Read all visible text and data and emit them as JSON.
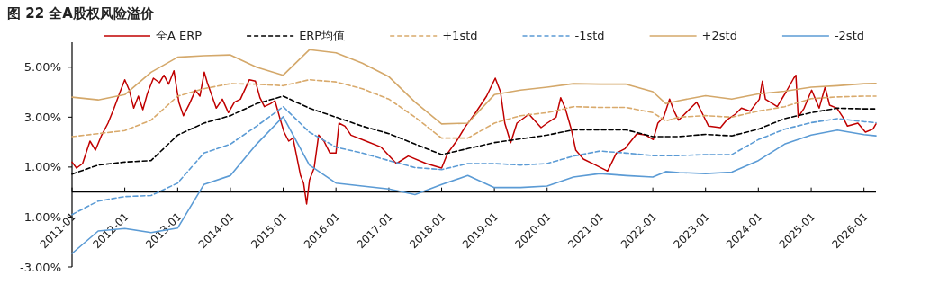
{
  "chart_data": {
    "type": "line",
    "title": "图 22 全A股权风险溢价",
    "legend": "top",
    "xlim": [
      "2011-01",
      "2026-03-25"
    ],
    "xticks": [
      "2011-01",
      "2012-01",
      "2013-01",
      "2014-01",
      "2015-01",
      "2016-01",
      "2017-01",
      "2018-01",
      "2019-01",
      "2020-01",
      "2021-01",
      "2022-01",
      "2023-01",
      "2024-01",
      "2025-01",
      "2026-01"
    ],
    "ylim": [
      -3,
      6
    ],
    "yticks": [
      {
        "value": -3,
        "label": "-3.00%"
      },
      {
        "value": -1,
        "label": "-1.00%"
      },
      {
        "value": 1,
        "label": "1.00%"
      },
      {
        "value": 3,
        "label": "3.00%"
      },
      {
        "value": 5,
        "label": "5.00%"
      }
    ],
    "series": [
      {
        "name": "全A ERP",
        "color": "#c00000",
        "line_style": "solid",
        "x": [
          "2011-01-01",
          "2011-02-01",
          "2011-03-15",
          "2011-05-05",
          "2011-06-12",
          "2011-07-25",
          "2011-09-07",
          "2011-10-19",
          "2011-11-30",
          "2012-01-01",
          "2012-02-01",
          "2012-03-03",
          "2012-04-04",
          "2012-05-05",
          "2012-06-06",
          "2012-07-17",
          "2012-08-28",
          "2012-09-28",
          "2012-10-30",
          "2012-12-06",
          "2013-01-09",
          "2013-02-10",
          "2013-03-24",
          "2013-05-04",
          "2013-06-04",
          "2013-07-04",
          "2013-07-25",
          "2013-09-25",
          "2013-11-06",
          "2013-12-18",
          "2014-01-29",
          "2014-03-11",
          "2014-05-12",
          "2014-06-23",
          "2014-07-24",
          "2014-08-24",
          "2014-10-05",
          "2014-11-05",
          "2014-12-07",
          "2015-01-07",
          "2015-02-08",
          "2015-03-10",
          "2015-05-01",
          "2015-05-22",
          "2015-06-12",
          "2015-07-02",
          "2015-08-03",
          "2015-09-03",
          "2015-10-10",
          "2015-11-20",
          "2016-01-01",
          "2016-01-22",
          "2016-03-03",
          "2016-04-14",
          "2016-07-27",
          "2016-11-08",
          "2017-02-22",
          "2017-05-15",
          "2017-09-17",
          "2018-01-01",
          "2018-02-12",
          "2018-04-14",
          "2018-06-16",
          "2018-08-17",
          "2018-11-08",
          "2019-01-07",
          "2019-02-12",
          "2019-03-14",
          "2019-04-24",
          "2019-06-06",
          "2019-08-28",
          "2019-11-20",
          "2020-01-01",
          "2020-03-03",
          "2020-04-04",
          "2020-05-05",
          "2020-06-16",
          "2020-07-17",
          "2020-09-08",
          "2020-12-01",
          "2021-02-22",
          "2021-04-24",
          "2021-06-23",
          "2021-08-03",
          "2021-09-13",
          "2021-11-14",
          "2022-01-04",
          "2022-02-05",
          "2022-03-17",
          "2022-04-27",
          "2022-05-28",
          "2022-06-28",
          "2022-08-09",
          "2022-10-10",
          "2022-10-31",
          "2022-12-12",
          "2023-01-22",
          "2023-04-14",
          "2023-05-26",
          "2023-07-26",
          "2023-09-06",
          "2023-11-06",
          "2024-01-08",
          "2024-01-29",
          "2024-02-19",
          "2024-05-11",
          "2024-07-12",
          "2024-09-02",
          "2024-09-17",
          "2024-10-03",
          "2024-11-13",
          "2025-01-04",
          "2025-02-25",
          "2025-04-07",
          "2025-05-08",
          "2025-06-28",
          "2025-08-08",
          "2025-09-09",
          "2025-11-20",
          "2026-01-11",
          "2026-03-04",
          "2026-03-25"
        ],
        "values": [
          1.2,
          0.96,
          1.14,
          2.04,
          1.68,
          2.28,
          2.76,
          3.36,
          4.02,
          4.5,
          4.08,
          3.36,
          3.84,
          3.3,
          3.96,
          4.56,
          4.38,
          4.68,
          4.32,
          4.86,
          3.6,
          3.06,
          3.54,
          4.08,
          3.84,
          4.8,
          4.38,
          3.36,
          3.72,
          3.18,
          3.6,
          3.72,
          4.5,
          4.44,
          3.78,
          3.42,
          3.54,
          3.66,
          3.0,
          2.4,
          2.04,
          2.16,
          0.66,
          0.36,
          -0.48,
          0.48,
          0.96,
          2.28,
          2.04,
          1.56,
          1.56,
          2.76,
          2.64,
          2.28,
          2.04,
          1.8,
          1.14,
          1.44,
          1.14,
          0.96,
          1.56,
          2.04,
          2.64,
          3.12,
          3.84,
          4.56,
          4.02,
          2.76,
          1.98,
          2.76,
          3.12,
          2.58,
          2.76,
          3.0,
          3.78,
          3.36,
          2.52,
          1.68,
          1.32,
          1.08,
          0.84,
          1.56,
          1.74,
          2.04,
          2.34,
          2.28,
          2.1,
          2.76,
          3.0,
          3.72,
          3.24,
          2.88,
          3.12,
          3.48,
          3.6,
          3.12,
          2.64,
          2.58,
          2.88,
          3.12,
          3.36,
          3.24,
          3.72,
          4.44,
          3.72,
          3.42,
          4.02,
          4.56,
          4.68,
          3.0,
          3.36,
          4.08,
          3.36,
          4.2,
          3.48,
          3.36,
          3.0,
          2.64,
          2.76,
          2.4,
          2.52,
          2.73
        ]
      },
      {
        "name": "ERP均值",
        "color": "#000000",
        "line_style": "dashed",
        "x": [
          "2011-01",
          "2011-07",
          "2012-01",
          "2012-07",
          "2013-01",
          "2013-07",
          "2014-01",
          "2014-07",
          "2015-01",
          "2015-07",
          "2016-01",
          "2016-07",
          "2017-01",
          "2017-07",
          "2018-01",
          "2018-07",
          "2019-01",
          "2019-07",
          "2020-01",
          "2020-07",
          "2021-01",
          "2021-07",
          "2022-01",
          "2022-07",
          "2023-01",
          "2023-07",
          "2024-01",
          "2024-07",
          "2025-01",
          "2025-07",
          "2026-01",
          "2026-03-25"
        ],
        "values": [
          0.72,
          1.08,
          1.2,
          1.26,
          2.28,
          2.76,
          3.06,
          3.54,
          3.84,
          3.36,
          3.0,
          2.64,
          2.34,
          1.92,
          1.5,
          1.74,
          1.98,
          2.13,
          2.28,
          2.49,
          2.49,
          2.49,
          2.22,
          2.22,
          2.31,
          2.25,
          2.52,
          2.94,
          3.18,
          3.36,
          3.33,
          3.33
        ]
      },
      {
        "name": "+1std",
        "color": "#d9aa6c",
        "line_style": "dashed",
        "x": [
          "2011-01",
          "2011-07",
          "2012-01",
          "2012-07",
          "2013-01",
          "2013-07",
          "2014-01",
          "2014-07",
          "2015-01",
          "2015-07",
          "2016-01",
          "2016-07",
          "2017-01",
          "2017-07",
          "2018-01",
          "2018-07",
          "2019-01",
          "2019-07",
          "2020-01",
          "2020-07",
          "2021-01",
          "2021-07",
          "2022-01",
          "2022-04",
          "2022-07",
          "2023-01",
          "2023-07",
          "2024-01",
          "2024-07",
          "2025-01",
          "2025-07",
          "2026-01",
          "2026-03-25"
        ],
        "values": [
          2.22,
          2.34,
          2.46,
          2.88,
          3.84,
          4.14,
          4.34,
          4.32,
          4.26,
          4.5,
          4.41,
          4.14,
          3.72,
          3.0,
          2.16,
          2.16,
          2.76,
          3.06,
          3.18,
          3.42,
          3.39,
          3.39,
          3.18,
          2.85,
          3.0,
          3.06,
          3.0,
          3.24,
          3.42,
          3.74,
          3.81,
          3.84,
          3.84
        ]
      },
      {
        "name": "-1std",
        "color": "#5b9bd5",
        "line_style": "dashed",
        "x": [
          "2011-01",
          "2011-07",
          "2012-01",
          "2012-07",
          "2013-01",
          "2013-07",
          "2014-01",
          "2014-07",
          "2015-01",
          "2015-07",
          "2016-01",
          "2016-07",
          "2017-01",
          "2017-07",
          "2018-01",
          "2018-07",
          "2019-01",
          "2019-07",
          "2020-01",
          "2020-07",
          "2021-01",
          "2021-07",
          "2022-01",
          "2022-07",
          "2023-01",
          "2023-07",
          "2024-01",
          "2024-07",
          "2025-01",
          "2025-07",
          "2026-01",
          "2026-03-25"
        ],
        "values": [
          -0.9,
          -0.36,
          -0.18,
          -0.14,
          0.36,
          1.56,
          1.92,
          2.64,
          3.42,
          2.4,
          1.8,
          1.56,
          1.26,
          0.98,
          0.9,
          1.14,
          1.14,
          1.08,
          1.14,
          1.44,
          1.64,
          1.56,
          1.46,
          1.46,
          1.5,
          1.5,
          2.1,
          2.52,
          2.78,
          2.94,
          2.82,
          2.78
        ]
      },
      {
        "name": "+2std",
        "color": "#d4a86a",
        "line_style": "solid",
        "x": [
          "2011-01",
          "2011-07",
          "2012-01",
          "2012-07",
          "2013-01",
          "2013-07",
          "2014-01",
          "2014-07",
          "2015-01",
          "2015-07",
          "2016-01",
          "2016-07",
          "2017-01",
          "2017-07",
          "2018-01",
          "2018-07",
          "2019-01",
          "2019-07",
          "2020-01",
          "2020-07",
          "2021-01",
          "2021-07",
          "2022-01",
          "2022-04",
          "2022-07",
          "2023-01",
          "2023-07",
          "2024-01",
          "2024-07",
          "2025-01",
          "2025-07",
          "2026-01",
          "2026-03-25"
        ],
        "values": [
          3.8,
          3.69,
          3.9,
          4.8,
          5.4,
          5.46,
          5.49,
          5.0,
          4.68,
          5.7,
          5.58,
          5.16,
          4.62,
          3.6,
          2.73,
          2.76,
          3.9,
          4.08,
          4.2,
          4.34,
          4.32,
          4.32,
          4.02,
          3.54,
          3.66,
          3.86,
          3.72,
          3.93,
          4.04,
          4.2,
          4.26,
          4.34,
          4.35
        ]
      },
      {
        "name": "-2std",
        "color": "#5b9bd5",
        "line_style": "solid",
        "x": [
          "2011-01",
          "2011-07",
          "2012-01",
          "2012-07",
          "2013-01",
          "2013-07",
          "2014-01",
          "2014-07",
          "2015-01",
          "2015-07",
          "2016-01",
          "2016-07",
          "2017-01",
          "2017-07",
          "2018-01",
          "2018-07",
          "2019-01",
          "2019-07",
          "2020-01",
          "2020-07",
          "2021-01",
          "2021-07",
          "2022-01",
          "2022-04",
          "2022-07",
          "2023-01",
          "2023-07",
          "2024-01",
          "2024-07",
          "2025-01",
          "2025-07",
          "2026-01",
          "2026-03-25"
        ],
        "values": [
          -2.46,
          -1.56,
          -1.46,
          -1.62,
          -1.44,
          0.3,
          0.66,
          1.92,
          3.02,
          1.08,
          0.36,
          0.24,
          0.12,
          -0.1,
          0.3,
          0.66,
          0.18,
          0.18,
          0.24,
          0.6,
          0.74,
          0.66,
          0.6,
          0.82,
          0.78,
          0.74,
          0.8,
          1.26,
          1.92,
          2.28,
          2.48,
          2.3,
          2.25
        ]
      }
    ]
  }
}
